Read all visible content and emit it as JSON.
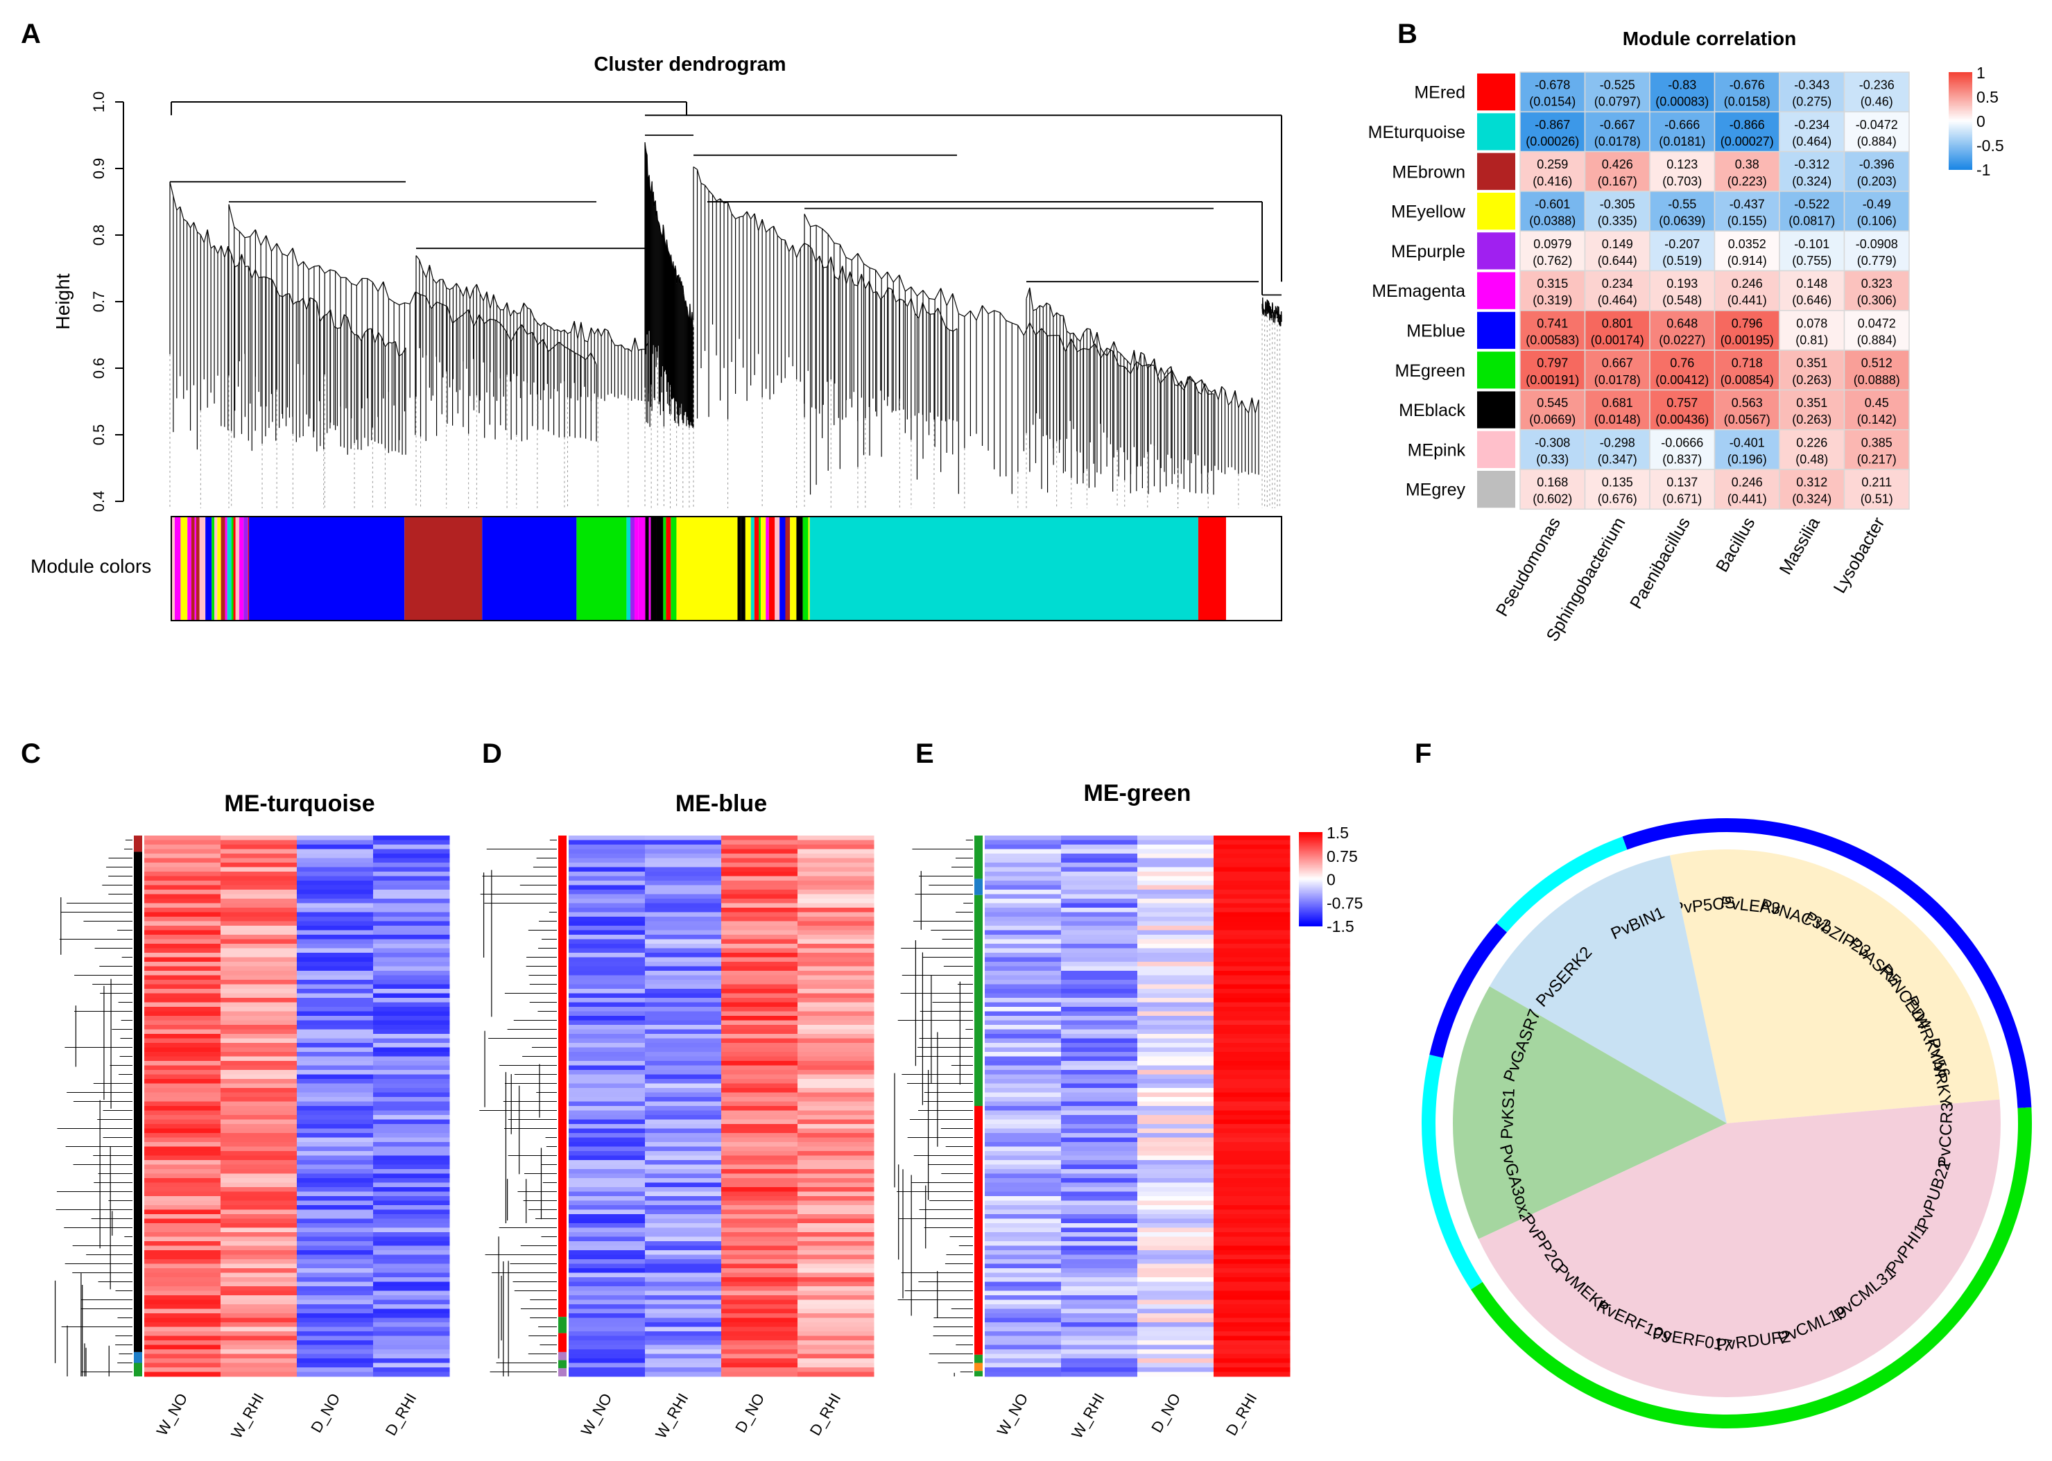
{
  "panel_labels": {
    "A": "A",
    "B": "B",
    "C": "C",
    "D": "D",
    "E": "E",
    "F": "F"
  },
  "colors": {
    "neg": "#1E88E5",
    "pos": "#F44336",
    "white": "#FFFFFF",
    "heat_blue": "#0000FF",
    "heat_red": "#FF0000",
    "turquoise": "#00DCD2",
    "blue": "#0000FF",
    "brown": "#B22222",
    "yellow": "#FFFF00",
    "purple": "#A020F0",
    "magenta": "#FF00FF",
    "green": "#00E600",
    "black": "#000000",
    "pink": "#FFC0CB",
    "grey": "#BEBEBE",
    "red": "#FF0000",
    "sector_yellow": "#FFF0C8",
    "sector_blue": "#C8E1F3",
    "sector_green": "#A5D6A0",
    "sector_pink": "#F4CFDB",
    "ring_blue": "#0000FF",
    "ring_cyan": "#00FFFF",
    "ring_green": "#00E600"
  },
  "chart_data": [
    {
      "id": "A",
      "type": "dendrogram",
      "title": "Cluster dendrogram",
      "ylabel": "Height",
      "ylim": [
        0.4,
        1.0
      ],
      "yticks": [
        "0.4",
        "0.5",
        "0.6",
        "0.7",
        "0.8",
        "0.9",
        "1.0"
      ],
      "color_bar_label": "Module colors",
      "module_color_blocks": [
        {
          "color": "mixed",
          "fraction": 0.07
        },
        {
          "color": "blue",
          "fraction": 0.14
        },
        {
          "color": "brown",
          "fraction": 0.07
        },
        {
          "color": "blue",
          "fraction": 0.085
        },
        {
          "color": "green",
          "fraction": 0.045
        },
        {
          "color": "mixed",
          "fraction": 0.045
        },
        {
          "color": "yellow",
          "fraction": 0.055
        },
        {
          "color": "mixed",
          "fraction": 0.065
        },
        {
          "color": "turquoise",
          "fraction": 0.35
        },
        {
          "color": "red",
          "fraction": 0.025
        }
      ]
    },
    {
      "id": "B",
      "type": "heatmap",
      "title": "Module correlation",
      "rows": [
        "MEred",
        "MEturquoise",
        "MEbrown",
        "MEyellow",
        "MEpurple",
        "MEmagenta",
        "MEblue",
        "MEgreen",
        "MEblack",
        "MEpink",
        "MEgrey"
      ],
      "row_colors": [
        "red",
        "turquoise",
        "brown",
        "yellow",
        "purple",
        "magenta",
        "blue",
        "green",
        "black",
        "pink",
        "grey"
      ],
      "columns": [
        "Pseudomonas",
        "Sphingobacterium",
        "Paenibacillus",
        "Bacillus",
        "Massilia",
        "Lysobacter"
      ],
      "values": [
        [
          "-0.678",
          "-0.525",
          "-0.83",
          "-0.676",
          "-0.343",
          "-0.236"
        ],
        [
          "-0.867",
          "-0.667",
          "-0.666",
          "-0.866",
          "-0.234",
          "-0.0472"
        ],
        [
          "0.259",
          "0.426",
          "0.123",
          "0.38",
          "-0.312",
          "-0.396"
        ],
        [
          "-0.601",
          "-0.305",
          "-0.55",
          "-0.437",
          "-0.522",
          "-0.49"
        ],
        [
          "0.0979",
          "0.149",
          "-0.207",
          "0.0352",
          "-0.101",
          "-0.0908"
        ],
        [
          "0.315",
          "0.234",
          "0.193",
          "0.246",
          "0.148",
          "0.323"
        ],
        [
          "0.741",
          "0.801",
          "0.648",
          "0.796",
          "0.078",
          "0.0472"
        ],
        [
          "0.797",
          "0.667",
          "0.76",
          "0.718",
          "0.351",
          "0.512"
        ],
        [
          "0.545",
          "0.681",
          "0.757",
          "0.563",
          "0.351",
          "0.45"
        ],
        [
          "-0.308",
          "-0.298",
          "-0.0666",
          "-0.401",
          "0.226",
          "0.385"
        ],
        [
          "0.168",
          "0.135",
          "0.137",
          "0.246",
          "0.312",
          "0.211"
        ]
      ],
      "pvalues": [
        [
          "(0.0154)",
          "(0.0797)",
          "(0.00083)",
          "(0.0158)",
          "(0.275)",
          "(0.46)"
        ],
        [
          "(0.00026)",
          "(0.0178)",
          "(0.0181)",
          "(0.00027)",
          "(0.464)",
          "(0.884)"
        ],
        [
          "(0.416)",
          "(0.167)",
          "(0.703)",
          "(0.223)",
          "(0.324)",
          "(0.203)"
        ],
        [
          "(0.0388)",
          "(0.335)",
          "(0.0639)",
          "(0.155)",
          "(0.0817)",
          "(0.106)"
        ],
        [
          "(0.762)",
          "(0.644)",
          "(0.519)",
          "(0.914)",
          "(0.755)",
          "(0.779)"
        ],
        [
          "(0.319)",
          "(0.464)",
          "(0.548)",
          "(0.441)",
          "(0.646)",
          "(0.306)"
        ],
        [
          "(0.00583)",
          "(0.00174)",
          "(0.0227)",
          "(0.00195)",
          "(0.81)",
          "(0.884)"
        ],
        [
          "(0.00191)",
          "(0.0178)",
          "(0.00412)",
          "(0.00854)",
          "(0.263)",
          "(0.0888)"
        ],
        [
          "(0.0669)",
          "(0.0148)",
          "(0.00436)",
          "(0.0567)",
          "(0.263)",
          "(0.142)"
        ],
        [
          "(0.33)",
          "(0.347)",
          "(0.837)",
          "(0.196)",
          "(0.48)",
          "(0.217)"
        ],
        [
          "(0.602)",
          "(0.676)",
          "(0.671)",
          "(0.441)",
          "(0.324)",
          "(0.51)"
        ]
      ],
      "legend_ticks": [
        "1",
        "0.5",
        "0",
        "-0.5",
        "-1"
      ],
      "legend_range": [
        -1,
        1
      ]
    },
    {
      "id": "C",
      "type": "heatmap",
      "title": "ME-turquoise",
      "columns": [
        "W_NO",
        "W_RHI",
        "D_NO",
        "D_RHI"
      ],
      "profile": [
        0.9,
        0.7,
        -0.8,
        -0.8
      ],
      "side_colors": [
        "brown",
        "black",
        "turquoise",
        "green"
      ]
    },
    {
      "id": "D",
      "type": "heatmap",
      "title": "ME-blue",
      "columns": [
        "W_NO",
        "W_RHI",
        "D_NO",
        "D_RHI"
      ],
      "profile": [
        -0.8,
        -0.7,
        0.9,
        0.6
      ],
      "side_colors": [
        "red",
        "green",
        "purple"
      ]
    },
    {
      "id": "E",
      "type": "heatmap",
      "title": "ME-green",
      "columns": [
        "W_NO",
        "W_RHI",
        "D_NO",
        "D_RHI"
      ],
      "profile": [
        -0.5,
        -0.6,
        -0.1,
        1.5
      ],
      "side_colors": [
        "green",
        "turquoise",
        "red",
        "orange"
      ],
      "legend_ticks": [
        "1.5",
        "0.75",
        "0",
        "-0.75",
        "-1.5"
      ],
      "legend_range": [
        -1.5,
        1.5
      ]
    },
    {
      "id": "F",
      "type": "pie",
      "sectors": [
        {
          "name": "yellow",
          "start": -102,
          "end": -5,
          "genes": [
            "PvP5CS",
            "PvLEA3",
            "PvNAC32",
            "PvbZIP23",
            "PvASR5",
            "PvNCED4",
            "PvWRKY56",
            "PvWRKY26"
          ]
        },
        {
          "name": "blue",
          "start": -150,
          "end": -102,
          "genes": [
            "PvSERK2",
            "PvBIN1"
          ]
        },
        {
          "name": "green",
          "start": -205,
          "end": -150,
          "genes": [
            "PvGA3ox2",
            "PvKS1",
            "PvGASR7"
          ]
        },
        {
          "name": "pink",
          "start": -5,
          "end": 155,
          "genes": [
            "PvCCR3",
            "PvPUB22",
            "PvPHI1",
            "PvCML31",
            "PvCML19",
            "PvRDUF2",
            "PvERF017",
            "PvERF109",
            "PvMEKK",
            "PvPP2C"
          ]
        }
      ],
      "ring": [
        {
          "color": "ring_blue",
          "start": -110,
          "end": -3
        },
        {
          "color": "ring_green",
          "start": -3,
          "end": 147
        },
        {
          "color": "ring_cyan",
          "start": 147,
          "end": 193
        },
        {
          "color": "ring_blue",
          "start": 193,
          "end": 221
        },
        {
          "color": "ring_cyan",
          "start": 221,
          "end": 250
        }
      ]
    }
  ]
}
